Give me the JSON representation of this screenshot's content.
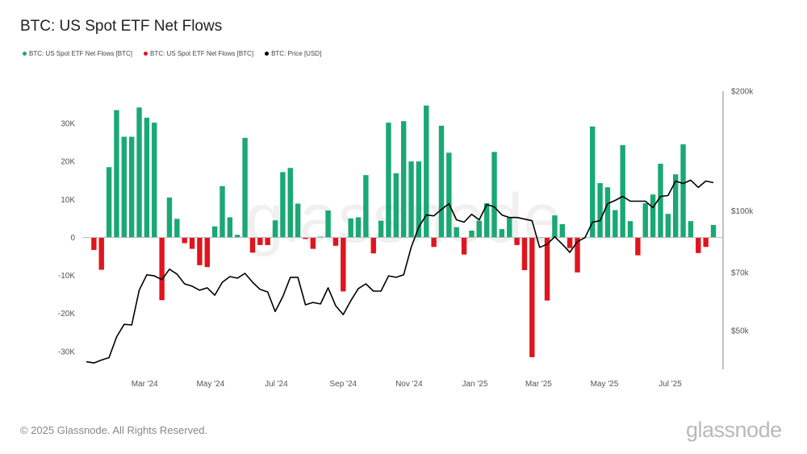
{
  "title": "BTC: US Spot ETF Net Flows",
  "legend": [
    {
      "label": "BTC: US Spot ETF Net Flows [BTC]",
      "color": "#1aa874"
    },
    {
      "label": "BTC: US Spot ETF Net Flows [BTC]",
      "color": "#e0141e"
    },
    {
      "label": "BTC: Price [USD]",
      "color": "#000000"
    }
  ],
  "footer": "© 2025 Glassnode. All Rights Reserved.",
  "logo": "glassnode",
  "watermark": "glassnode",
  "chart_data": {
    "type": "bar+line",
    "title": "BTC: US Spot ETF Net Flows",
    "left_axis": {
      "ticks": [
        -30000,
        -20000,
        -10000,
        0,
        10000,
        20000,
        30000
      ],
      "tick_labels": [
        "-30K",
        "-20K",
        "-10K",
        "0",
        "10K",
        "20K",
        "30K"
      ],
      "range": [
        -34700,
        38500
      ]
    },
    "right_axis": {
      "scale": "log",
      "ticks": [
        50000,
        70000,
        100000,
        200000
      ],
      "tick_labels": [
        "$50k",
        "$70k",
        "$100k",
        "$200k"
      ],
      "range": [
        40000,
        200000
      ]
    },
    "x_axis": {
      "tick_dates": [
        "2024-03-01",
        "2024-05-01",
        "2024-07-01",
        "2024-09-01",
        "2024-11-01",
        "2025-01-01",
        "2025-03-01",
        "2025-05-01",
        "2025-07-01"
      ],
      "tick_labels": [
        "Mar '24",
        "May '24",
        "Jul '24",
        "Sep '24",
        "Nov '24",
        "Jan '25",
        "Mar '25",
        "May '25",
        "Jul '25"
      ]
    },
    "grid": false,
    "colors": {
      "inflow": "#1aa874",
      "outflow": "#e0141e",
      "price": "#000000"
    },
    "dates": [
      "2024-01-07",
      "2024-01-14",
      "2024-01-21",
      "2024-01-28",
      "2024-02-04",
      "2024-02-11",
      "2024-02-18",
      "2024-02-25",
      "2024-03-03",
      "2024-03-10",
      "2024-03-17",
      "2024-03-24",
      "2024-03-31",
      "2024-04-07",
      "2024-04-14",
      "2024-04-21",
      "2024-04-28",
      "2024-05-05",
      "2024-05-12",
      "2024-05-19",
      "2024-05-26",
      "2024-06-02",
      "2024-06-09",
      "2024-06-16",
      "2024-06-23",
      "2024-06-30",
      "2024-07-07",
      "2024-07-14",
      "2024-07-21",
      "2024-07-28",
      "2024-08-04",
      "2024-08-11",
      "2024-08-18",
      "2024-08-25",
      "2024-09-01",
      "2024-09-08",
      "2024-09-15",
      "2024-09-22",
      "2024-09-29",
      "2024-10-06",
      "2024-10-13",
      "2024-10-20",
      "2024-10-27",
      "2024-11-03",
      "2024-11-10",
      "2024-11-17",
      "2024-11-24",
      "2024-12-01",
      "2024-12-08",
      "2024-12-15",
      "2024-12-22",
      "2024-12-29",
      "2025-01-05",
      "2025-01-12",
      "2025-01-19",
      "2025-01-26",
      "2025-02-02",
      "2025-02-09",
      "2025-02-16",
      "2025-02-23",
      "2025-03-02",
      "2025-03-09",
      "2025-03-16",
      "2025-03-23",
      "2025-03-30",
      "2025-04-06",
      "2025-04-13",
      "2025-04-20",
      "2025-04-27",
      "2025-05-04",
      "2025-05-11",
      "2025-05-18",
      "2025-05-25",
      "2025-06-01",
      "2025-06-08",
      "2025-06-15",
      "2025-06-22",
      "2025-06-29",
      "2025-07-06",
      "2025-07-13",
      "2025-07-20",
      "2025-07-27",
      "2025-08-03",
      "2025-08-10"
    ],
    "flows_btc": [
      null,
      -3300,
      -8500,
      18500,
      33500,
      26500,
      26500,
      34200,
      31500,
      30200,
      -16500,
      10500,
      4900,
      -1500,
      -3000,
      -7300,
      -7800,
      2900,
      13500,
      5300,
      700,
      26200,
      -4000,
      -2000,
      -2000,
      4500,
      17200,
      18300,
      8900,
      -400,
      -3000,
      200,
      7100,
      -2200,
      -14200,
      5000,
      5300,
      16400,
      -4200,
      4400,
      30200,
      16900,
      30600,
      20000,
      20000,
      34700,
      -2500,
      29400,
      22300,
      2700,
      -4500,
      1800,
      4400,
      9000,
      22500,
      2200,
      5200,
      -2000,
      -8600,
      -31500,
      0,
      -16600,
      5800,
      3500,
      -2800,
      -9200,
      0,
      29200,
      14300,
      13200,
      7200,
      24300,
      4300,
      -4700,
      9000,
      11300,
      19400,
      6200,
      16600,
      24500,
      4300,
      -4100,
      -2500,
      3300
    ],
    "price_usd": [
      41800,
      41500,
      42200,
      42800,
      48200,
      51900,
      51700,
      63200,
      69100,
      68700,
      67200,
      71400,
      69400,
      65600,
      64700,
      63200,
      64100,
      61400,
      66200,
      68400,
      67800,
      69700,
      66200,
      63500,
      62600,
      55900,
      60900,
      68100,
      68100,
      58100,
      58900,
      58400,
      64100,
      57800,
      54900,
      59500,
      63800,
      65600,
      62900,
      62900,
      68700,
      68100,
      69100,
      81000,
      91100,
      97700,
      97200,
      100900,
      104300,
      95000,
      93700,
      98100,
      95000,
      103800,
      102400,
      97700,
      96300,
      96300,
      95400,
      94500,
      81000,
      82500,
      86100,
      82500,
      78700,
      83700,
      85700,
      93700,
      94500,
      104300,
      106300,
      108800,
      105800,
      105800,
      105800,
      101900,
      108800,
      109300,
      118900,
      117200,
      119500,
      114600,
      118900,
      117800
    ]
  }
}
